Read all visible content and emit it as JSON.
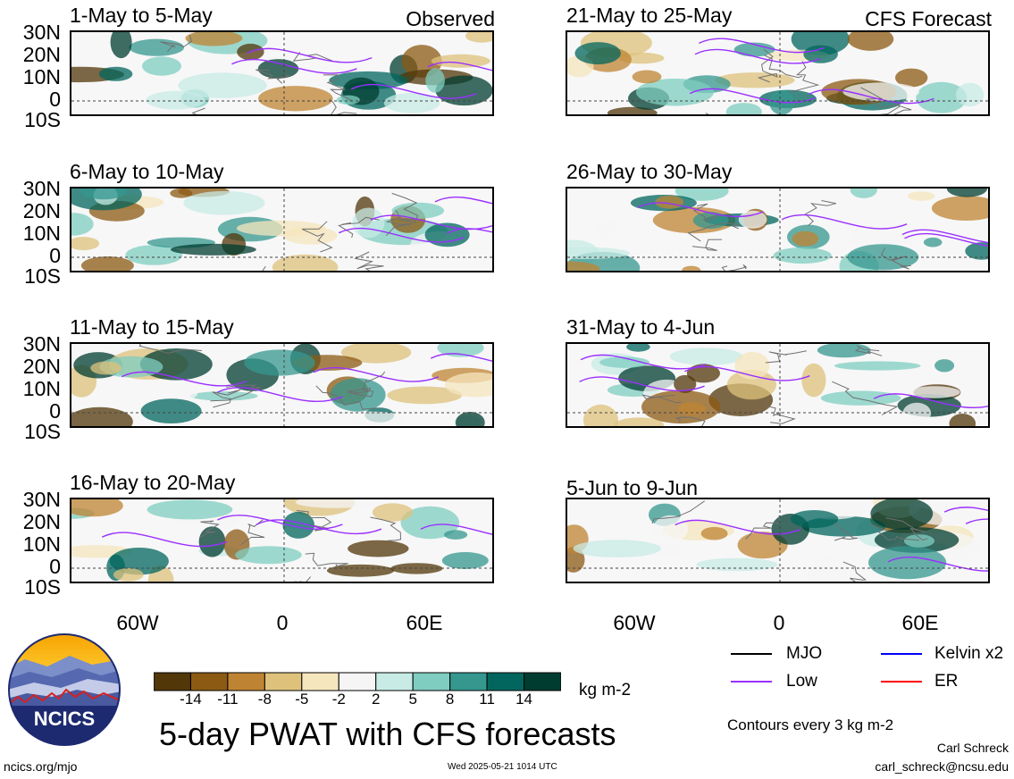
{
  "header": {
    "observed_label": "Observed",
    "forecast_label": "CFS Forecast"
  },
  "panels": [
    {
      "title": "1-May to 5-May",
      "column": "observed"
    },
    {
      "title": "6-May to 10-May",
      "column": "observed"
    },
    {
      "title": "11-May to 15-May",
      "column": "observed"
    },
    {
      "title": "16-May to 20-May",
      "column": "observed"
    },
    {
      "title": "21-May to 25-May",
      "column": "forecast"
    },
    {
      "title": "26-May to 30-May",
      "column": "forecast"
    },
    {
      "title": "31-May to 4-Jun",
      "column": "forecast"
    },
    {
      "title": "5-Jun to 9-Jun",
      "column": "forecast"
    }
  ],
  "axes": {
    "lat_labels": [
      "30N",
      "20N",
      "10N",
      "0",
      "10S"
    ],
    "lon_labels": [
      "60W",
      "0",
      "60E"
    ]
  },
  "colorbar": {
    "labels": [
      "-14",
      "-11",
      "-8",
      "-5",
      "-2",
      "2",
      "5",
      "8",
      "11",
      "14"
    ],
    "colors": [
      "#523709",
      "#8c5a13",
      "#bf8433",
      "#dec27c",
      "#f5e6bd",
      "#f5f5f5",
      "#c8ebe5",
      "#7fcdc0",
      "#36978f",
      "#02665e",
      "#003c30"
    ],
    "units": "kg m-2"
  },
  "legend": {
    "items": [
      {
        "label": "MJO",
        "color": "#000000"
      },
      {
        "label": "Kelvin x2",
        "color": "#0000ff"
      },
      {
        "label": "Low",
        "color": "#9b30ff"
      },
      {
        "label": "ER",
        "color": "#ff0000"
      }
    ],
    "contour_note": "Contours every 3 kg m-2"
  },
  "title": "5-day PWAT with CFS forecasts",
  "logo": {
    "text": "NCICS"
  },
  "footer": {
    "url": "ncics.org/mjo",
    "timestamp": "Wed 2025-05-21 1014 UTC",
    "author": "Carl Schreck",
    "email": "carl_schreck@ncsu.edu"
  }
}
